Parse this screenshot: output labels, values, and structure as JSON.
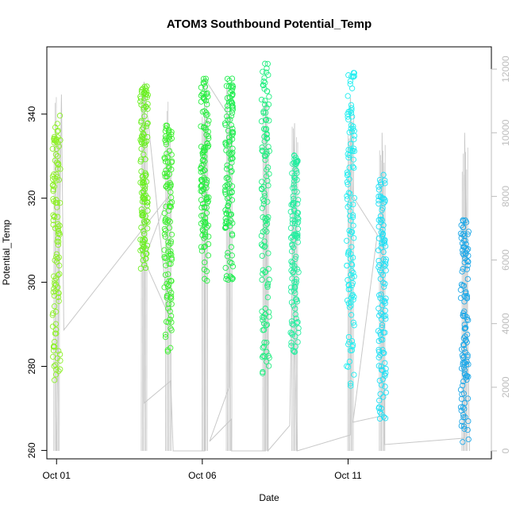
{
  "chart_data": {
    "type": "scatter",
    "title": "ATOM3 Southbound Potential_Temp",
    "xlabel": "Date",
    "ylabel": "Potential_Temp",
    "xlim": [
      "2016-09-30T16:00",
      "2016-10-15T22:00"
    ],
    "ylim": [
      258,
      356
    ],
    "x_ticks": [
      {
        "value": "2016-10-01",
        "label": "Oct 01"
      },
      {
        "value": "2016-10-06",
        "label": "Oct 06"
      },
      {
        "value": "2016-10-11",
        "label": "Oct 11"
      }
    ],
    "y_ticks": [
      260,
      280,
      300,
      320,
      340
    ],
    "y2_ticks": [
      0,
      2000,
      4000,
      6000,
      8000,
      10000,
      12000
    ],
    "y2lim": [
      -250,
      12700
    ],
    "grid": false,
    "legend": "none",
    "colors": {
      "points_start": "#7fff00",
      "points_mid": "#00ff7f",
      "points_late": "#00ffff",
      "points_end": "#00a0ff",
      "altitude_line": "#c8c8c8",
      "frame": "#000000",
      "right_axis": "#bdbdbd"
    },
    "profiles": [
      {
        "date": "2016-10-01T00:00",
        "theta_min": 276,
        "theta_max": 340,
        "alt_max": 11200,
        "color": "#8ef02a"
      },
      {
        "date": "2016-10-04T00:00",
        "theta_min": 303,
        "theta_max": 347,
        "alt_max": 11600,
        "color": "#6af020"
      },
      {
        "date": "2016-10-04T20:00",
        "theta_min": 283,
        "theta_max": 338,
        "alt_max": 11000,
        "color": "#3ef030"
      },
      {
        "date": "2016-10-06T02:00",
        "theta_min": 300,
        "theta_max": 349,
        "alt_max": 11700,
        "color": "#28ee40"
      },
      {
        "date": "2016-10-06T22:00",
        "theta_min": 299,
        "theta_max": 349,
        "alt_max": 11500,
        "color": "#20ee50"
      },
      {
        "date": "2016-10-08T04:00",
        "theta_min": 277,
        "theta_max": 352,
        "alt_max": 11000,
        "color": "#20ee80"
      },
      {
        "date": "2016-10-09T04:00",
        "theta_min": 283,
        "theta_max": 331,
        "alt_max": 10300,
        "color": "#25eea0"
      },
      {
        "date": "2016-10-11T02:00",
        "theta_min": 275,
        "theta_max": 351,
        "alt_max": 11100,
        "color": "#20eef0"
      },
      {
        "date": "2016-10-12T04:00",
        "theta_min": 266,
        "theta_max": 327,
        "alt_max": 10000,
        "color": "#20e0f5"
      },
      {
        "date": "2016-10-15T00:00",
        "theta_min": 262,
        "theta_max": 315,
        "alt_max": 10000,
        "color": "#1ea8e8"
      }
    ],
    "altitude_track": [
      {
        "x": "2016-10-01T00:00",
        "y": 0
      },
      {
        "x": "2016-10-01T04:00",
        "y": 11200
      },
      {
        "x": "2016-10-01T06:00",
        "y": 3800
      },
      {
        "x": "2016-10-04T20:00",
        "y": 8000
      },
      {
        "x": "2016-10-04T00:00",
        "y": 6000
      },
      {
        "x": "2016-10-04T20:00",
        "y": 4300
      },
      {
        "x": "2016-10-04T00:00",
        "y": 11600
      },
      {
        "x": "2016-10-04T00:00",
        "y": 1500
      },
      {
        "x": "2016-10-04T22:00",
        "y": 2200
      },
      {
        "x": "2016-10-05T00:00",
        "y": 0
      },
      {
        "x": "2016-10-06T02:00",
        "y": 0
      },
      {
        "x": "2016-10-06T02:00",
        "y": 11700
      },
      {
        "x": "2016-10-06T22:00",
        "y": 10500
      },
      {
        "x": "2016-10-06T22:00",
        "y": 2000
      },
      {
        "x": "2016-10-06T06:00",
        "y": 300
      },
      {
        "x": "2016-10-07T00:00",
        "y": 1000
      },
      {
        "x": "2016-10-07T00:00",
        "y": 0
      },
      {
        "x": "2016-10-08T04:00",
        "y": 0
      },
      {
        "x": "2016-10-08T04:00",
        "y": 11000
      },
      {
        "x": "2016-10-08T06:00",
        "y": 3000
      },
      {
        "x": "2016-10-08T06:00",
        "y": 0
      },
      {
        "x": "2016-10-09T00:00",
        "y": 800
      },
      {
        "x": "2016-10-09T04:00",
        "y": 10300
      },
      {
        "x": "2016-10-09T04:00",
        "y": 3500
      },
      {
        "x": "2016-10-09T06:00",
        "y": 0
      },
      {
        "x": "2016-10-11T02:00",
        "y": 500
      },
      {
        "x": "2016-10-11T02:00",
        "y": 11100
      },
      {
        "x": "2016-10-11T04:00",
        "y": 8000
      },
      {
        "x": "2016-10-12T00:00",
        "y": 6800
      },
      {
        "x": "2016-10-11T04:00",
        "y": 900
      },
      {
        "x": "2016-10-12T04:00",
        "y": 1100
      },
      {
        "x": "2016-10-12T04:00",
        "y": 10000
      },
      {
        "x": "2016-10-12T06:00",
        "y": 200
      },
      {
        "x": "2016-10-15T00:00",
        "y": 400
      },
      {
        "x": "2016-10-15T00:00",
        "y": 10000
      },
      {
        "x": "2016-10-15T04:00",
        "y": 0
      }
    ]
  }
}
